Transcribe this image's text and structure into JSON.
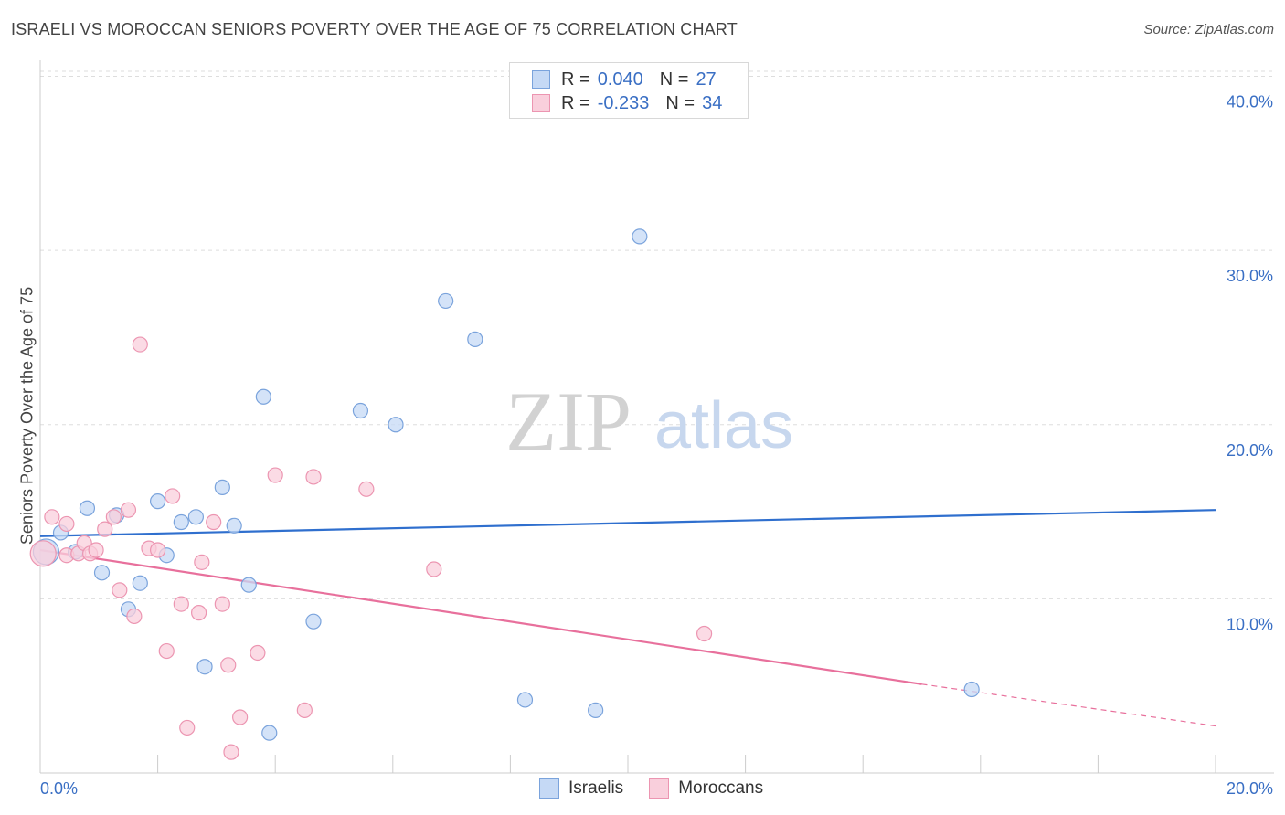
{
  "header": {
    "title": "ISRAELI VS MOROCCAN SENIORS POVERTY OVER THE AGE OF 75 CORRELATION CHART",
    "source": "Source: ZipAtlas.com"
  },
  "watermark": {
    "zip": "ZIP",
    "atlas": "atlas"
  },
  "legend_top": {
    "rows": [
      {
        "r_label": "R =",
        "r_value": "0.040",
        "n_label": "N =",
        "n_value": "27"
      },
      {
        "r_label": "R =",
        "r_value": "-0.233",
        "n_label": "N =",
        "n_value": "34"
      }
    ]
  },
  "legend_bottom": {
    "items": [
      "Israelis",
      "Moroccans"
    ]
  },
  "colors": {
    "israelis_fill": "#c5d9f5",
    "israelis_stroke": "#7aa3dc",
    "israelis_line": "#2f6fce",
    "moroccans_fill": "#f9cfdc",
    "moroccans_stroke": "#ec95b1",
    "moroccans_line": "#e8709c",
    "tick_label": "#3a6fc4",
    "grid": "#dddddd"
  },
  "chart_data": {
    "type": "scatter",
    "title": "ISRAELI VS MOROCCAN SENIORS POVERTY OVER THE AGE OF 75 CORRELATION CHART",
    "xlabel": "",
    "ylabel": "Seniors Poverty Over the Age of 75",
    "xlim": [
      0,
      20
    ],
    "ylim": [
      0,
      40.5
    ],
    "x_tick_labels": [
      "0.0%",
      "20.0%"
    ],
    "y_ticks": [
      10,
      20,
      30,
      40
    ],
    "y_tick_labels": [
      "10.0%",
      "20.0%",
      "30.0%",
      "40.0%"
    ],
    "grid": true,
    "legend_position": "top-center and bottom",
    "series": [
      {
        "name": "Israelis",
        "r": 0.04,
        "n": 27,
        "trend": {
          "x0": 0,
          "y0": 13.6,
          "x1": 20,
          "y1": 15.1
        },
        "points": [
          [
            0.1,
            12.7
          ],
          [
            0.35,
            13.8
          ],
          [
            0.6,
            12.7
          ],
          [
            0.8,
            15.2
          ],
          [
            1.05,
            11.5
          ],
          [
            1.3,
            14.8
          ],
          [
            1.5,
            9.4
          ],
          [
            1.7,
            10.9
          ],
          [
            2.0,
            15.6
          ],
          [
            2.15,
            12.5
          ],
          [
            2.4,
            14.4
          ],
          [
            2.65,
            14.7
          ],
          [
            2.8,
            6.1
          ],
          [
            3.1,
            16.4
          ],
          [
            3.3,
            14.2
          ],
          [
            3.55,
            10.8
          ],
          [
            3.8,
            21.6
          ],
          [
            3.9,
            2.3
          ],
          [
            4.65,
            8.7
          ],
          [
            5.45,
            20.8
          ],
          [
            6.05,
            20.0
          ],
          [
            6.9,
            27.1
          ],
          [
            7.4,
            24.9
          ],
          [
            8.25,
            4.2
          ],
          [
            9.45,
            3.6
          ],
          [
            10.2,
            30.8
          ],
          [
            15.85,
            4.8
          ]
        ]
      },
      {
        "name": "Moroccans",
        "r": -0.233,
        "n": 34,
        "trend": {
          "x0": 0,
          "y0": 12.8,
          "x1": 15.0,
          "y1": 5.1,
          "dash_x1": 20,
          "dash_y1": 2.7
        },
        "points": [
          [
            0.05,
            12.6
          ],
          [
            0.2,
            14.7
          ],
          [
            0.45,
            12.5
          ],
          [
            0.45,
            14.3
          ],
          [
            0.65,
            12.6
          ],
          [
            0.75,
            13.2
          ],
          [
            0.85,
            12.6
          ],
          [
            0.95,
            12.8
          ],
          [
            1.1,
            14.0
          ],
          [
            1.25,
            14.7
          ],
          [
            1.35,
            10.5
          ],
          [
            1.5,
            15.1
          ],
          [
            1.6,
            9.0
          ],
          [
            1.7,
            24.6
          ],
          [
            1.85,
            12.9
          ],
          [
            2.0,
            12.8
          ],
          [
            2.15,
            7.0
          ],
          [
            2.25,
            15.9
          ],
          [
            2.4,
            9.7
          ],
          [
            2.5,
            2.6
          ],
          [
            2.7,
            9.2
          ],
          [
            2.75,
            12.1
          ],
          [
            2.95,
            14.4
          ],
          [
            3.1,
            9.7
          ],
          [
            3.2,
            6.2
          ],
          [
            3.25,
            1.2
          ],
          [
            3.4,
            3.2
          ],
          [
            3.7,
            6.9
          ],
          [
            4.0,
            17.1
          ],
          [
            4.5,
            3.6
          ],
          [
            4.65,
            17.0
          ],
          [
            5.55,
            16.3
          ],
          [
            6.7,
            11.7
          ],
          [
            11.3,
            8.0
          ]
        ]
      }
    ]
  }
}
